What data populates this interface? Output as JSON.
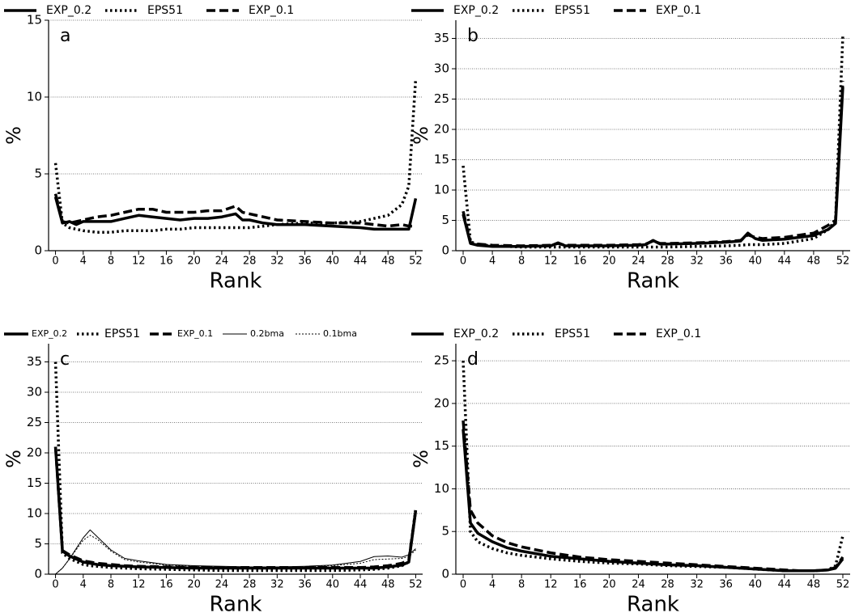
{
  "chart_data": [
    {
      "type": "line",
      "title": "a",
      "x_label": "Rank",
      "y_label": "%",
      "x": [
        0,
        1,
        2,
        3,
        4,
        6,
        8,
        10,
        12,
        14,
        16,
        18,
        20,
        22,
        24,
        26,
        27,
        28,
        30,
        32,
        36,
        40,
        44,
        46,
        48,
        50,
        51,
        52
      ],
      "series": [
        {
          "name": "EXP_0.2",
          "color": "#000000",
          "line_style": "solid",
          "line_width": 3.5,
          "values": [
            3.5,
            1.8,
            1.9,
            1.7,
            1.9,
            1.9,
            1.9,
            2.1,
            2.3,
            2.2,
            2.1,
            2.0,
            2.1,
            2.1,
            2.2,
            2.4,
            2.0,
            2.0,
            1.8,
            1.7,
            1.7,
            1.6,
            1.5,
            1.4,
            1.4,
            1.4,
            1.4,
            3.4
          ]
        },
        {
          "name": "EPS51",
          "color": "#000000",
          "line_style": "dotted",
          "line_width": 3.5,
          "values": [
            5.7,
            1.8,
            1.5,
            1.4,
            1.3,
            1.2,
            1.2,
            1.3,
            1.3,
            1.3,
            1.4,
            1.4,
            1.5,
            1.5,
            1.5,
            1.5,
            1.5,
            1.5,
            1.6,
            1.7,
            1.8,
            1.8,
            1.9,
            2.1,
            2.3,
            3.0,
            4.2,
            11.2
          ]
        },
        {
          "name": "EXP_0.1",
          "color": "#000000",
          "line_style": "dashed",
          "line_width": 3.5,
          "values": [
            3.7,
            1.9,
            1.8,
            1.9,
            2.0,
            2.2,
            2.3,
            2.5,
            2.7,
            2.7,
            2.5,
            2.5,
            2.5,
            2.6,
            2.6,
            2.9,
            2.5,
            2.4,
            2.2,
            2.0,
            1.9,
            1.8,
            1.8,
            1.7,
            1.6,
            1.7,
            1.6,
            1.6
          ]
        }
      ],
      "xlim": [
        -1,
        53
      ],
      "xticks": [
        0,
        4,
        8,
        12,
        16,
        20,
        24,
        28,
        32,
        36,
        40,
        44,
        48,
        52
      ],
      "ylim": [
        0,
        15
      ],
      "yticks": [
        0,
        5,
        10,
        15
      ],
      "grid": true
    },
    {
      "type": "line",
      "title": "b",
      "x_label": "Rank",
      "y_label": "%",
      "x": [
        0,
        1,
        2,
        4,
        8,
        12,
        13,
        14,
        16,
        20,
        24,
        25,
        26,
        27,
        28,
        32,
        36,
        38,
        39,
        40,
        41,
        44,
        48,
        50,
        51,
        52
      ],
      "series": [
        {
          "name": "EXP_0.2",
          "color": "#000000",
          "line_style": "solid",
          "line_width": 3.5,
          "values": [
            6,
            1.2,
            0.9,
            0.7,
            0.7,
            0.8,
            1.3,
            0.8,
            0.8,
            0.8,
            0.9,
            1.0,
            1.7,
            1.1,
            1.1,
            1.2,
            1.4,
            1.6,
            2.9,
            2.0,
            1.7,
            1.9,
            2.5,
            3.5,
            4.5,
            27
          ]
        },
        {
          "name": "EPS51",
          "color": "#000000",
          "line_style": "dotted",
          "line_width": 3.5,
          "values": [
            14,
            1.5,
            1.0,
            0.8,
            0.6,
            0.6,
            0.6,
            0.6,
            0.6,
            0.6,
            0.6,
            0.6,
            0.6,
            0.6,
            0.6,
            0.7,
            0.8,
            0.9,
            1.0,
            1.0,
            1.0,
            1.2,
            2.0,
            3.5,
            5,
            35.5
          ]
        },
        {
          "name": "EXP_0.1",
          "color": "#000000",
          "line_style": "dashed",
          "line_width": 3.5,
          "values": [
            6.5,
            1.4,
            1.1,
            0.9,
            0.8,
            0.9,
            1.2,
            0.9,
            0.9,
            0.9,
            1.0,
            1.1,
            1.6,
            1.2,
            1.2,
            1.3,
            1.5,
            1.7,
            2.6,
            2.2,
            2.0,
            2.2,
            2.9,
            4.2,
            5,
            28
          ]
        }
      ],
      "xlim": [
        -1,
        53
      ],
      "xticks": [
        0,
        4,
        8,
        12,
        16,
        20,
        24,
        28,
        32,
        36,
        40,
        44,
        48,
        52
      ],
      "ylim": [
        0,
        38
      ],
      "yticks": [
        0,
        5,
        10,
        15,
        20,
        25,
        30,
        35
      ],
      "grid": true
    },
    {
      "type": "line",
      "title": "c",
      "x_label": "Rank",
      "y_label": "%",
      "x": [
        0,
        1,
        2,
        4,
        5,
        6,
        8,
        10,
        12,
        16,
        20,
        24,
        28,
        32,
        36,
        40,
        44,
        46,
        48,
        50,
        51,
        52
      ],
      "series": [
        {
          "name": "EXP_0.2",
          "color": "#000000",
          "line_style": "solid",
          "line_width": 3.5,
          "values": [
            21,
            3.8,
            3.0,
            2.0,
            1.8,
            1.6,
            1.4,
            1.3,
            1.2,
            1.1,
            1.0,
            1.0,
            1.0,
            1.0,
            1.0,
            1.0,
            1.0,
            1.0,
            1.2,
            1.5,
            2,
            10.5
          ]
        },
        {
          "name": "EPS51",
          "color": "#000000",
          "line_style": "dotted",
          "line_width": 3.5,
          "values": [
            35,
            3.5,
            2.6,
            1.6,
            1.4,
            1.3,
            1.1,
            1.0,
            0.9,
            0.8,
            0.7,
            0.6,
            0.6,
            0.6,
            0.6,
            0.6,
            0.7,
            0.8,
            1.0,
            1.4,
            2,
            10.8
          ]
        },
        {
          "name": "EXP_0.1",
          "color": "#000000",
          "line_style": "dashed",
          "line_width": 3.5,
          "values": [
            21,
            3.9,
            3.2,
            2.2,
            2.0,
            1.8,
            1.6,
            1.4,
            1.3,
            1.2,
            1.1,
            1.1,
            1.1,
            1.1,
            1.1,
            1.1,
            1.1,
            1.2,
            1.4,
            1.8,
            2.3,
            10.5
          ]
        },
        {
          "name": "0.2bma",
          "color": "#000000",
          "line_style": "solid",
          "line_width": 1,
          "values": [
            0,
            1,
            2.5,
            6,
            7.3,
            6.2,
            4,
            2.6,
            2.2,
            1.6,
            1.4,
            1.3,
            1.2,
            1.2,
            1.3,
            1.5,
            2.1,
            2.9,
            3.0,
            2.8,
            3.2,
            4.2
          ]
        },
        {
          "name": "0.1bma",
          "color": "#000000",
          "line_style": "dotted",
          "line_width": 1,
          "values": [
            0,
            1,
            2.5,
            5.6,
            6.4,
            5.8,
            3.8,
            2.4,
            2.0,
            1.5,
            1.3,
            1.2,
            1.1,
            1.1,
            1.2,
            1.4,
            1.8,
            2.4,
            2.5,
            2.6,
            2.9,
            4.0
          ]
        }
      ],
      "xlim": [
        -1,
        53
      ],
      "xticks": [
        0,
        4,
        8,
        12,
        16,
        20,
        24,
        28,
        32,
        36,
        40,
        44,
        48,
        52
      ],
      "ylim": [
        0,
        38
      ],
      "yticks": [
        0,
        5,
        10,
        15,
        20,
        25,
        30,
        35
      ],
      "grid": true
    },
    {
      "type": "line",
      "title": "d",
      "x_label": "Rank",
      "y_label": "%",
      "x": [
        0,
        1,
        2,
        4,
        6,
        8,
        12,
        16,
        20,
        24,
        28,
        32,
        36,
        40,
        44,
        46,
        48,
        50,
        51,
        52
      ],
      "series": [
        {
          "name": "EXP_0.2",
          "color": "#000000",
          "line_style": "solid",
          "line_width": 3.5,
          "values": [
            17,
            6,
            4.8,
            3.8,
            3.1,
            2.7,
            2.1,
            1.8,
            1.5,
            1.3,
            1.1,
            1.0,
            0.8,
            0.6,
            0.4,
            0.4,
            0.4,
            0.5,
            0.7,
            1.8
          ]
        },
        {
          "name": "EPS51",
          "color": "#000000",
          "line_style": "dotted",
          "line_width": 3.5,
          "values": [
            25,
            5,
            3.8,
            3,
            2.5,
            2.2,
            1.8,
            1.5,
            1.3,
            1.2,
            1.0,
            0.9,
            0.8,
            0.6,
            0.4,
            0.4,
            0.4,
            0.5,
            1,
            4.5
          ]
        },
        {
          "name": "EXP_0.1",
          "color": "#000000",
          "line_style": "dashed",
          "line_width": 3.5,
          "values": [
            18,
            7.5,
            6,
            4.5,
            3.7,
            3.2,
            2.5,
            2.0,
            1.7,
            1.5,
            1.3,
            1.1,
            0.9,
            0.7,
            0.5,
            0.4,
            0.4,
            0.5,
            0.8,
            2
          ]
        }
      ],
      "xlim": [
        -1,
        53
      ],
      "xticks": [
        0,
        4,
        8,
        12,
        16,
        20,
        24,
        28,
        32,
        36,
        40,
        44,
        48,
        52
      ],
      "ylim": [
        0,
        27
      ],
      "yticks": [
        0,
        5,
        10,
        15,
        20,
        25
      ],
      "grid": true
    }
  ]
}
